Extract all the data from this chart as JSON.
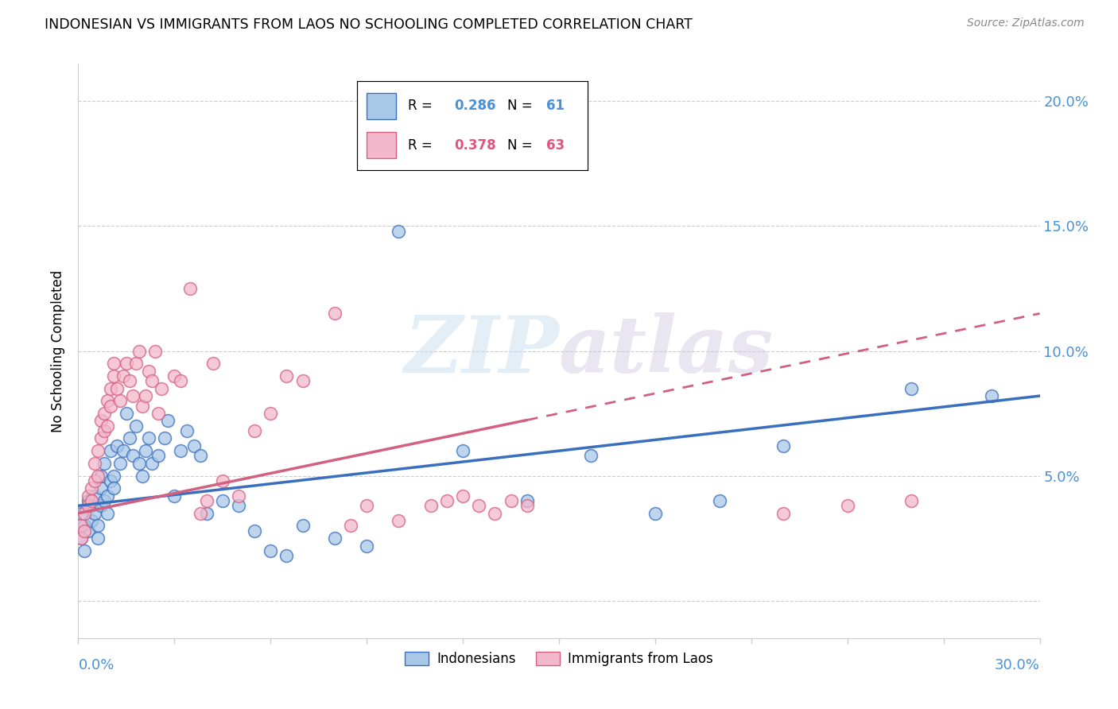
{
  "title": "INDONESIAN VS IMMIGRANTS FROM LAOS NO SCHOOLING COMPLETED CORRELATION CHART",
  "source": "Source: ZipAtlas.com",
  "ylabel": "No Schooling Completed",
  "ytick_vals": [
    0.0,
    0.05,
    0.1,
    0.15,
    0.2
  ],
  "ytick_labels": [
    "",
    "5.0%",
    "10.0%",
    "15.0%",
    "20.0%"
  ],
  "xmin": 0.0,
  "xmax": 0.3,
  "ymin": -0.015,
  "ymax": 0.215,
  "legend_r1": "R = 0.286",
  "legend_n1": "N = 61",
  "legend_r2": "R = 0.378",
  "legend_n2": "N = 63",
  "color_blue": "#a8c8e8",
  "color_pink": "#f4b8cc",
  "color_blue_line": "#3a6fbd",
  "color_pink_line": "#d46080",
  "color_blue_text": "#4a90d9",
  "color_pink_text": "#e05580",
  "watermark": "ZIPAtlas",
  "indonesian_x": [
    0.001,
    0.001,
    0.002,
    0.002,
    0.003,
    0.003,
    0.004,
    0.004,
    0.005,
    0.005,
    0.006,
    0.006,
    0.007,
    0.007,
    0.007,
    0.008,
    0.008,
    0.009,
    0.009,
    0.01,
    0.01,
    0.011,
    0.011,
    0.012,
    0.013,
    0.014,
    0.015,
    0.016,
    0.017,
    0.018,
    0.019,
    0.02,
    0.021,
    0.022,
    0.023,
    0.025,
    0.027,
    0.028,
    0.03,
    0.032,
    0.034,
    0.036,
    0.038,
    0.04,
    0.045,
    0.05,
    0.055,
    0.06,
    0.065,
    0.07,
    0.08,
    0.09,
    0.1,
    0.12,
    0.14,
    0.16,
    0.18,
    0.2,
    0.22,
    0.26,
    0.285
  ],
  "indonesian_y": [
    0.035,
    0.025,
    0.03,
    0.02,
    0.04,
    0.028,
    0.038,
    0.032,
    0.042,
    0.035,
    0.03,
    0.025,
    0.045,
    0.038,
    0.05,
    0.04,
    0.055,
    0.042,
    0.035,
    0.048,
    0.06,
    0.05,
    0.045,
    0.062,
    0.055,
    0.06,
    0.075,
    0.065,
    0.058,
    0.07,
    0.055,
    0.05,
    0.06,
    0.065,
    0.055,
    0.058,
    0.065,
    0.072,
    0.042,
    0.06,
    0.068,
    0.062,
    0.058,
    0.035,
    0.04,
    0.038,
    0.028,
    0.02,
    0.018,
    0.03,
    0.025,
    0.022,
    0.148,
    0.06,
    0.04,
    0.058,
    0.035,
    0.04,
    0.062,
    0.085,
    0.082
  ],
  "laos_x": [
    0.001,
    0.001,
    0.002,
    0.002,
    0.003,
    0.003,
    0.004,
    0.004,
    0.005,
    0.005,
    0.006,
    0.006,
    0.007,
    0.007,
    0.008,
    0.008,
    0.009,
    0.009,
    0.01,
    0.01,
    0.011,
    0.011,
    0.012,
    0.013,
    0.014,
    0.015,
    0.016,
    0.017,
    0.018,
    0.019,
    0.02,
    0.021,
    0.022,
    0.023,
    0.024,
    0.025,
    0.026,
    0.03,
    0.032,
    0.035,
    0.038,
    0.04,
    0.042,
    0.045,
    0.05,
    0.055,
    0.06,
    0.065,
    0.07,
    0.08,
    0.085,
    0.09,
    0.1,
    0.11,
    0.115,
    0.12,
    0.125,
    0.13,
    0.135,
    0.14,
    0.22,
    0.24,
    0.26
  ],
  "laos_y": [
    0.03,
    0.025,
    0.035,
    0.028,
    0.042,
    0.038,
    0.045,
    0.04,
    0.048,
    0.055,
    0.06,
    0.05,
    0.065,
    0.072,
    0.068,
    0.075,
    0.08,
    0.07,
    0.085,
    0.078,
    0.09,
    0.095,
    0.085,
    0.08,
    0.09,
    0.095,
    0.088,
    0.082,
    0.095,
    0.1,
    0.078,
    0.082,
    0.092,
    0.088,
    0.1,
    0.075,
    0.085,
    0.09,
    0.088,
    0.125,
    0.035,
    0.04,
    0.095,
    0.048,
    0.042,
    0.068,
    0.075,
    0.09,
    0.088,
    0.115,
    0.03,
    0.038,
    0.032,
    0.038,
    0.04,
    0.042,
    0.038,
    0.035,
    0.04,
    0.038,
    0.035,
    0.038,
    0.04
  ],
  "trend_blue_x0": 0.0,
  "trend_blue_y0": 0.038,
  "trend_blue_x1": 0.3,
  "trend_blue_y1": 0.082,
  "trend_pink_x0": 0.0,
  "trend_pink_y0": 0.035,
  "trend_pink_x1": 0.3,
  "trend_pink_y1": 0.115
}
